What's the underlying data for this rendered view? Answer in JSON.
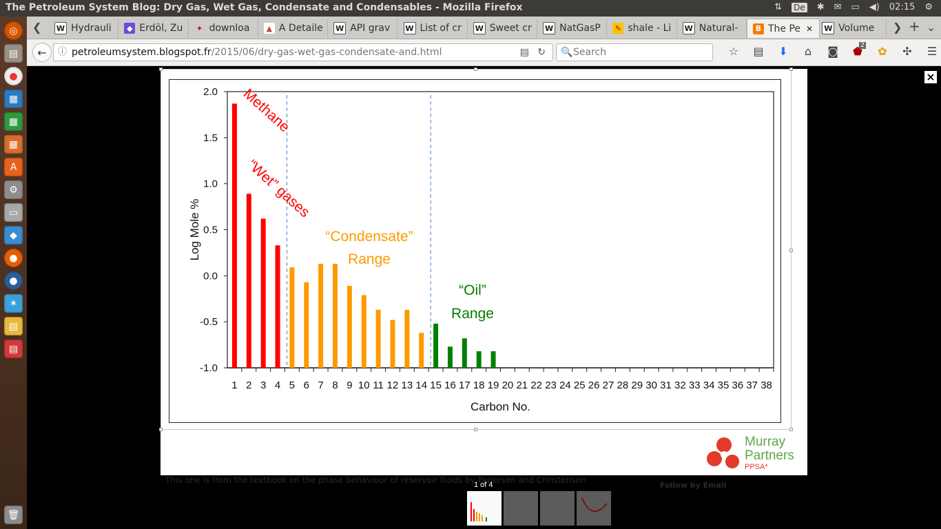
{
  "window": {
    "title": "The Petroleum System Blog: Dry Gas, Wet Gas, Condensate and Condensables - Mozilla Firefox",
    "keyboard_layout": "De",
    "time": "02:15"
  },
  "tabs": [
    {
      "label": "Hydrauli",
      "icon": "wikipedia-icon"
    },
    {
      "label": "Erdöl, Zu",
      "icon": "pocket-icon"
    },
    {
      "label": "downloa",
      "icon": "download-site-icon"
    },
    {
      "label": "A Detaile",
      "icon": "page-icon"
    },
    {
      "label": "API grav",
      "icon": "wikipedia-icon"
    },
    {
      "label": "List of cr",
      "icon": "wikipedia-icon"
    },
    {
      "label": "Sweet cr",
      "icon": "wikipedia-icon"
    },
    {
      "label": "NatGasP",
      "icon": "wikipedia-icon"
    },
    {
      "label": "shale - Li",
      "icon": "leo-icon"
    },
    {
      "label": "Natural-",
      "icon": "wikipedia-icon"
    },
    {
      "label": "The Pe",
      "icon": "blogger-icon",
      "active": true
    },
    {
      "label": "Volume",
      "icon": "wikipedia-icon"
    }
  ],
  "navbar": {
    "url_host": "petroleumsystem.blogspot.fr",
    "url_path": "/2015/06/dry-gas-wet-gas-condensate-and.html",
    "search_placeholder": "Search",
    "ublock_badge": "2"
  },
  "lightbox": {
    "counter": "1 of 4",
    "caption_behind": "This one is from the textbook on the phase behaviour of reservoir fluids by Pedersen and Christensen",
    "sidebar_behind": "Follow by Email",
    "logo": {
      "line1": "Murray",
      "line2": "Partners",
      "line3": "PPSA*"
    },
    "close_label": "×"
  },
  "chart_data": {
    "type": "bar",
    "xlabel": "Carbon No.",
    "ylabel": "Log Mole %",
    "ylim": [
      -1.0,
      2.0
    ],
    "yticks": [
      "2.0",
      "1.5",
      "1.0",
      "0.5",
      "0.0",
      "-0.5",
      "-1.0"
    ],
    "categories": [
      "1",
      "2",
      "3",
      "4",
      "5",
      "6",
      "7",
      "8",
      "9",
      "10",
      "11",
      "12",
      "13",
      "14",
      "15",
      "16",
      "17",
      "18",
      "19",
      "20",
      "21",
      "22",
      "23",
      "24",
      "25",
      "26",
      "27",
      "28",
      "29",
      "30",
      "31",
      "32",
      "33",
      "34",
      "35",
      "36",
      "37",
      "38"
    ],
    "series": [
      {
        "name": "Methane / \"Wet\" gases",
        "color": "#ff0000",
        "x": [
          1,
          2,
          3,
          4
        ],
        "values": [
          1.87,
          0.89,
          0.62,
          0.33
        ]
      },
      {
        "name": "\"Condensate\" Range",
        "color": "#ff9900",
        "x": [
          5,
          6,
          7,
          8,
          9,
          10,
          11,
          12,
          13,
          14
        ],
        "values": [
          0.09,
          -0.07,
          0.13,
          0.13,
          -0.11,
          -0.21,
          -0.37,
          -0.48,
          -0.37,
          -0.62
        ]
      },
      {
        "name": "\"Oil\" Range",
        "color": "#008000",
        "x": [
          15,
          16,
          17,
          18,
          19
        ],
        "values": [
          -0.52,
          -0.77,
          -0.68,
          -0.82,
          -0.82
        ]
      }
    ],
    "dividers_after": [
      4,
      14
    ],
    "annotations": [
      {
        "text": "Methane",
        "color": "#ff0000"
      },
      {
        "text": "“Wet” gases",
        "color": "#ff0000"
      },
      {
        "text": "“Condensate”",
        "color": "#ff9900"
      },
      {
        "text": "Range",
        "color": "#ff9900"
      },
      {
        "text": "“Oil”",
        "color": "#008000"
      },
      {
        "text": "Range",
        "color": "#008000"
      }
    ]
  }
}
